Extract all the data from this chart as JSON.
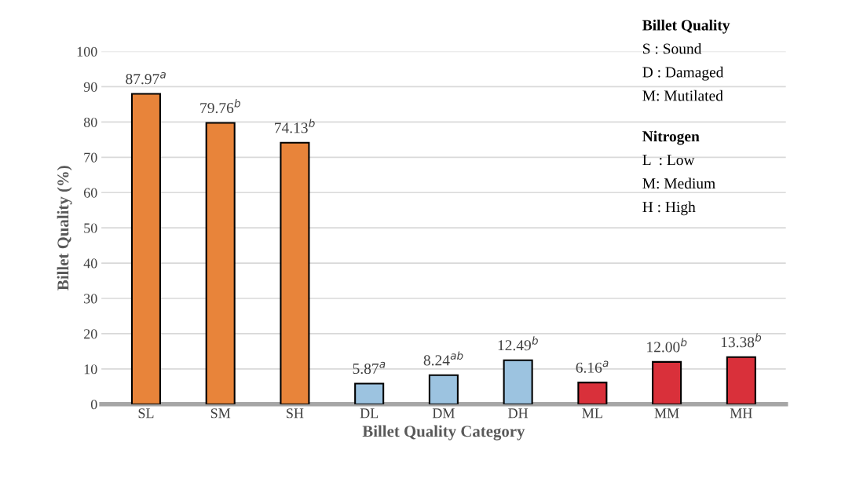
{
  "chart_data": {
    "type": "bar",
    "xlabel": "Billet Quality Category",
    "ylabel": "Billet Quality (%)",
    "categories": [
      "SL",
      "SM",
      "SH",
      "DL",
      "DM",
      "DH",
      "ML",
      "MM",
      "MH"
    ],
    "values": [
      87.97,
      79.76,
      74.13,
      5.87,
      8.24,
      12.49,
      6.16,
      12.0,
      13.38
    ],
    "colors": [
      "#e8843a",
      "#e8843a",
      "#e8843a",
      "#9cc3e0",
      "#9cc3e0",
      "#9cc3e0",
      "#d9303a",
      "#d9303a",
      "#d9303a"
    ],
    "value_labels": [
      "87.97$^{a}$",
      "79.76$^{b}$",
      "74.13$^{b}$",
      "5.87$^{a}$",
      "8.24$^{ab}$",
      "12.49$^{b}$",
      "6.16$^{a}$",
      "12.00$^{b}$",
      "13.38$^{b}$"
    ],
    "ylim": [
      0,
      100
    ],
    "yticks": [
      0,
      10,
      20,
      30,
      40,
      50,
      60,
      70,
      80,
      90,
      100
    ],
    "grid": "y",
    "annotations": [
      "Billet Quality",
      "S : Sound",
      "D : Damaged",
      "M: Mutilated",
      "Nitrogen",
      "L  : Low",
      "M: Medium",
      "H : High"
    ]
  }
}
